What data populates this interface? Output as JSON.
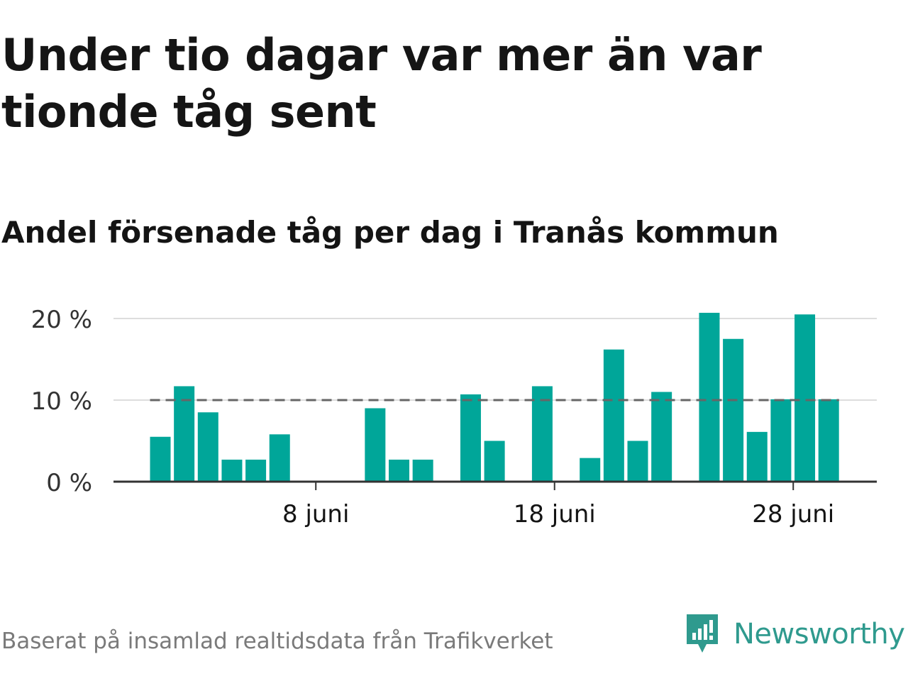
{
  "header": {
    "title": "Under tio dagar var mer än var tionde tåg sent",
    "subtitle": "Andel försenade tåg per dag i Tranås kommun"
  },
  "footer": {
    "source": "Baserat på insamlad realtidsdata från Trafikverket",
    "brand": "Newsworthy"
  },
  "colors": {
    "bar": "#00a699",
    "reference_line": "#666666",
    "grid": "#dddddd",
    "axis": "#333333",
    "brand": "#2f9a8e"
  },
  "chart_data": {
    "type": "bar",
    "x_unit": "juni",
    "days": [
      1,
      2,
      3,
      4,
      5,
      6,
      7,
      8,
      9,
      10,
      11,
      12,
      13,
      14,
      15,
      16,
      17,
      18,
      19,
      20,
      21,
      22,
      23,
      24,
      25,
      26,
      27,
      28,
      29
    ],
    "values": [
      5.5,
      11.7,
      8.5,
      2.7,
      2.7,
      5.8,
      0,
      0,
      0,
      9.0,
      2.7,
      2.7,
      0,
      10.7,
      5.0,
      0,
      11.7,
      0,
      2.9,
      16.2,
      5.0,
      11.0,
      0,
      20.7,
      17.5,
      6.1,
      10.1,
      20.5,
      10.1
    ],
    "reference_line": 10,
    "y_ticks": [
      0,
      10,
      20
    ],
    "y_tick_labels": [
      "0 %",
      "10 %",
      "20 %"
    ],
    "x_ticks": [
      8,
      18,
      28
    ],
    "x_tick_labels": [
      "8 juni",
      "18 juni",
      "28 juni"
    ],
    "ylim": [
      0,
      21
    ],
    "grid": true,
    "legend": "none"
  }
}
